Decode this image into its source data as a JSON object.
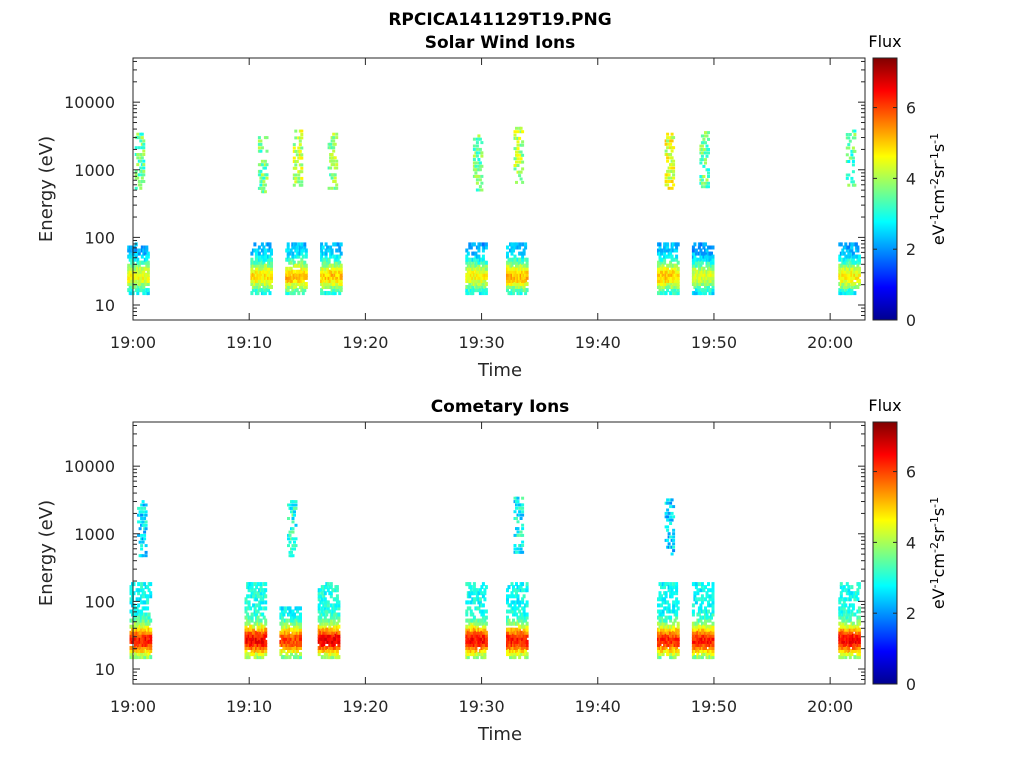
{
  "figure": {
    "main_title": "RPCICA141129T19.PNG"
  },
  "chart_data": [
    {
      "type": "heatmap",
      "title": "Solar Wind Ions",
      "xlabel": "Time",
      "ylabel": "Energy (eV)",
      "y_scale": "log",
      "ylim": [
        6,
        45000
      ],
      "xlim": [
        "19:00",
        "20:03"
      ],
      "x_ticks": [
        "19:00",
        "19:10",
        "19:20",
        "19:30",
        "19:40",
        "19:50",
        "20:00"
      ],
      "y_ticks": [
        "10",
        "100",
        "1000",
        "10000"
      ],
      "colorbar": {
        "title": "Flux",
        "label": "eV-1cm-2sr-1s-1",
        "ticks": [
          "0",
          "2",
          "4",
          "6"
        ],
        "range": [
          0,
          7.4
        ],
        "colormap": "jet"
      },
      "grid": false,
      "bursts": [
        {
          "t": 0.4,
          "high": 900,
          "high_val": 3.5,
          "low_val": 4.6
        },
        {
          "t": 11.0,
          "high": 800,
          "high_val": 3.6,
          "low_val": 4.8
        },
        {
          "t": 14.0,
          "high": 1000,
          "high_val": 4.2,
          "low_val": 5.2
        },
        {
          "t": 17.0,
          "high": 900,
          "high_val": 3.8,
          "low_val": 5.0
        },
        {
          "t": 29.5,
          "high": 850,
          "high_val": 3.5,
          "low_val": 4.6
        },
        {
          "t": 33.0,
          "high": 1100,
          "high_val": 4.0,
          "low_val": 5.1
        },
        {
          "t": 46.0,
          "high": 900,
          "high_val": 4.4,
          "low_val": 5.0
        },
        {
          "t": 49.0,
          "high": 950,
          "high_val": 3.5,
          "low_val": 4.4
        },
        {
          "t": 61.6,
          "high": 1000,
          "high_val": 3.4,
          "low_val": 4.7
        }
      ]
    },
    {
      "type": "heatmap",
      "title": "Cometary Ions",
      "xlabel": "Time",
      "ylabel": "Energy (eV)",
      "y_scale": "log",
      "ylim": [
        6,
        45000
      ],
      "xlim": [
        "19:00",
        "20:03"
      ],
      "x_ticks": [
        "19:00",
        "19:10",
        "19:20",
        "19:30",
        "19:40",
        "19:50",
        "20:00"
      ],
      "y_ticks": [
        "10",
        "100",
        "1000",
        "10000"
      ],
      "colorbar": {
        "title": "Flux",
        "label": "eV-1cm-2sr-1s-1",
        "ticks": [
          "0",
          "2",
          "4",
          "6"
        ],
        "range": [
          0,
          7.4
        ],
        "colormap": "jet"
      },
      "grid": false,
      "bursts": [
        {
          "t": 0.6,
          "high": 800,
          "high_val": 2.6,
          "low_val": 6.3
        },
        {
          "t": 10.5,
          "high": 0,
          "high_val": 0,
          "low_val": 6.5
        },
        {
          "t": 13.5,
          "high": 800,
          "high_val": 3.0,
          "low_val": 6.0
        },
        {
          "t": 16.8,
          "high": 0,
          "high_val": 0,
          "low_val": 6.6
        },
        {
          "t": 29.5,
          "high": 0,
          "high_val": 0,
          "low_val": 6.4
        },
        {
          "t": 33.0,
          "high": 900,
          "high_val": 2.8,
          "low_val": 6.3
        },
        {
          "t": 46.0,
          "high": 850,
          "high_val": 2.5,
          "low_val": 6.2
        },
        {
          "t": 49.0,
          "high": 0,
          "high_val": 0,
          "low_val": 6.3
        },
        {
          "t": 61.6,
          "high": 0,
          "high_val": 0,
          "low_val": 6.5
        }
      ]
    }
  ]
}
